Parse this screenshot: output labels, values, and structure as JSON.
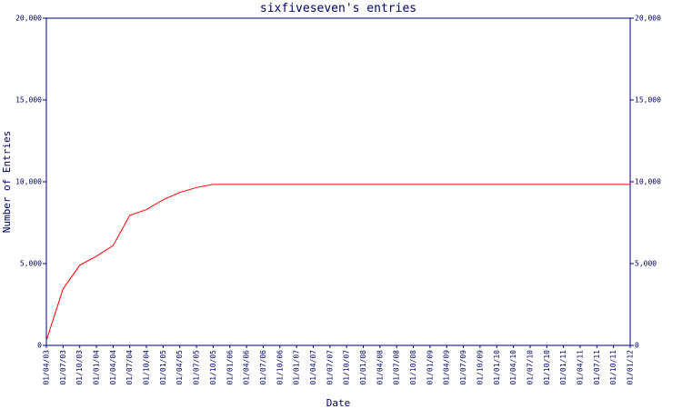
{
  "chart_data": {
    "type": "line",
    "title": "sixfiveseven's entries",
    "x_label": "Date",
    "y_label": "Number of Entries",
    "categories": [
      "01/04/03",
      "01/07/03",
      "01/10/03",
      "01/01/04",
      "01/04/04",
      "01/07/04",
      "01/10/04",
      "01/01/05",
      "01/04/05",
      "01/07/05",
      "01/10/05",
      "01/01/06",
      "01/04/06",
      "01/07/06",
      "01/10/06",
      "01/01/07",
      "01/04/07",
      "01/07/07",
      "01/10/07",
      "01/01/08",
      "01/04/08",
      "01/07/08",
      "01/10/08",
      "01/01/09",
      "01/04/09",
      "01/07/09",
      "01/10/09",
      "01/01/10",
      "01/04/10",
      "01/07/10",
      "01/10/10",
      "01/01/11",
      "01/04/11",
      "01/07/11",
      "01/10/11",
      "01/01/12"
    ],
    "series": [
      {
        "name": "Entries",
        "color": "#ff0000",
        "values": [
          300,
          3450,
          4900,
          5450,
          6100,
          7950,
          8300,
          8900,
          9350,
          9650,
          9840,
          9840,
          9840,
          9840,
          9840,
          9840,
          9840,
          9840,
          9840,
          9840,
          9840,
          9840,
          9840,
          9840,
          9840,
          9840,
          9840,
          9840,
          9840,
          9840,
          9840,
          9840,
          9840,
          9840,
          9840,
          9840
        ]
      }
    ],
    "ylim": [
      0,
      20000
    ],
    "yticks": [
      0,
      {
        "value": 5000,
        "label": "5,000"
      },
      {
        "value": 10000,
        "label": "10,000"
      },
      {
        "value": 15000,
        "label": "15,000"
      },
      {
        "value": 20000,
        "label": "20,000"
      }
    ],
    "grid": false
  }
}
